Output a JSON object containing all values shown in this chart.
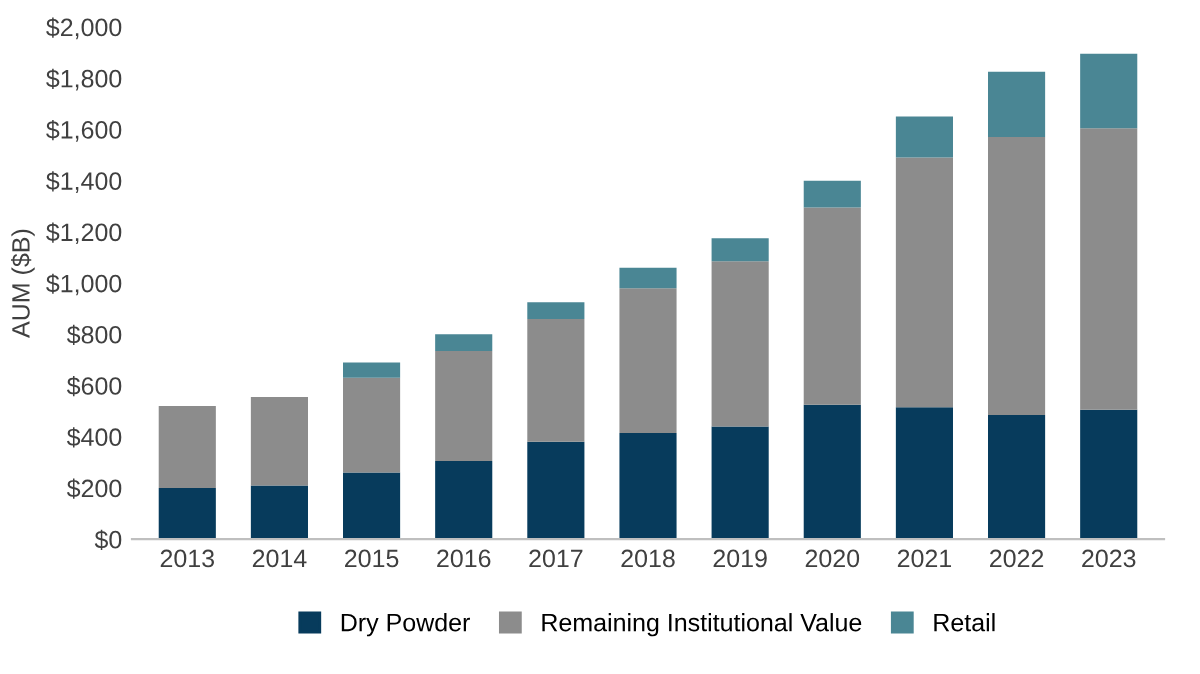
{
  "chart_data": {
    "type": "bar",
    "stacked": true,
    "ylabel": "AUM ($B)",
    "categories": [
      "2013",
      "2014",
      "2015",
      "2016",
      "2017",
      "2018",
      "2019",
      "2020",
      "2021",
      "2022",
      "2023"
    ],
    "series": [
      {
        "name": "Dry Powder",
        "color": "#073b5c",
        "values": [
          200,
          210,
          260,
          305,
          380,
          415,
          440,
          525,
          515,
          485,
          505
        ]
      },
      {
        "name": "Remaining Institutional Value",
        "color": "#8c8c8c",
        "values": [
          320,
          345,
          370,
          430,
          480,
          565,
          645,
          770,
          975,
          1085,
          1100
        ]
      },
      {
        "name": "Retail",
        "color": "#4a8694",
        "values": [
          null,
          null,
          60,
          65,
          65,
          80,
          90,
          105,
          160,
          255,
          290
        ]
      }
    ],
    "ylim": [
      0,
      2000
    ],
    "yticks": [
      {
        "value": 0,
        "label": "$0"
      },
      {
        "value": 200,
        "label": "$200"
      },
      {
        "value": 400,
        "label": "$400"
      },
      {
        "value": 600,
        "label": "$600"
      },
      {
        "value": 800,
        "label": "$800"
      },
      {
        "value": 1000,
        "label": "$1,000"
      },
      {
        "value": 1200,
        "label": "$1,200"
      },
      {
        "value": 1400,
        "label": "$1,400"
      },
      {
        "value": 1600,
        "label": "$1,600"
      },
      {
        "value": 1800,
        "label": "$1,800"
      },
      {
        "value": 2000,
        "label": "$2,000"
      }
    ],
    "grid": false,
    "legend": "bottom"
  }
}
